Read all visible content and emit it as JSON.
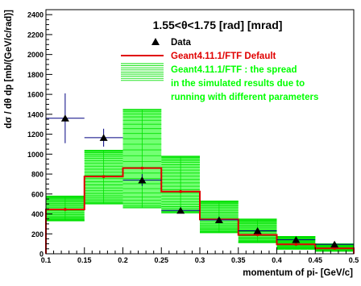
{
  "chart_data": {
    "type": "histogram",
    "title": "1.55<θ<1.75 [rad] [mrad]",
    "xlabel": "momentum of pi- [GeV/c]",
    "ylabel": "dσ / dθ dp [mb/(GeV/c/rad)]",
    "xlim": [
      0.1,
      0.5
    ],
    "ylim": [
      0,
      2450
    ],
    "x_ticks": [
      "0.1",
      "0.15",
      "0.2",
      "0.25",
      "0.3",
      "0.35",
      "0.4",
      "0.45",
      "0.5"
    ],
    "y_ticks": [
      "0",
      "200",
      "400",
      "600",
      "800",
      "1000",
      "1200",
      "1400",
      "1600",
      "1800",
      "2000",
      "2200",
      "2400"
    ],
    "bin_edges": [
      0.1,
      0.15,
      0.2,
      0.25,
      0.3,
      0.35,
      0.4,
      0.45,
      0.5
    ],
    "legend": {
      "placement": "top-right",
      "entries": [
        {
          "label": "Data",
          "color": "#000000",
          "marker": "triangle"
        },
        {
          "label": "Geant4.11.1/FTF Default",
          "color": "#e00000",
          "marker": "line"
        },
        {
          "label": "Geant4.11.1/FTF : the spread",
          "color": "#00ff00",
          "marker": "band"
        },
        {
          "label": "in the simulated results due to",
          "color": "#00ff00",
          "marker": "none"
        },
        {
          "label": "running with different parameters",
          "color": "#00ff00",
          "marker": "none"
        }
      ]
    },
    "series": [
      {
        "name": "Data",
        "color": "#000000",
        "error_color": "#000080",
        "x": [
          0.125,
          0.175,
          0.225,
          0.275,
          0.325,
          0.375,
          0.425,
          0.475
        ],
        "y": [
          1360,
          1165,
          740,
          435,
          340,
          230,
          140,
          95
        ],
        "yerr": [
          250,
          90,
          60,
          30,
          25,
          20,
          15,
          12
        ]
      },
      {
        "name": "Geant4.11.1/FTF Default",
        "color": "#e00000",
        "y": [
          445,
          775,
          860,
          625,
          345,
          190,
          95,
          55
        ]
      },
      {
        "name": "Geant4.11.1/FTF : the spread",
        "color": "#00ff00",
        "y_low": [
          330,
          500,
          460,
          410,
          210,
          110,
          45,
          25
        ],
        "y_high": [
          580,
          1040,
          1450,
          980,
          530,
          350,
          175,
          100
        ]
      }
    ]
  }
}
